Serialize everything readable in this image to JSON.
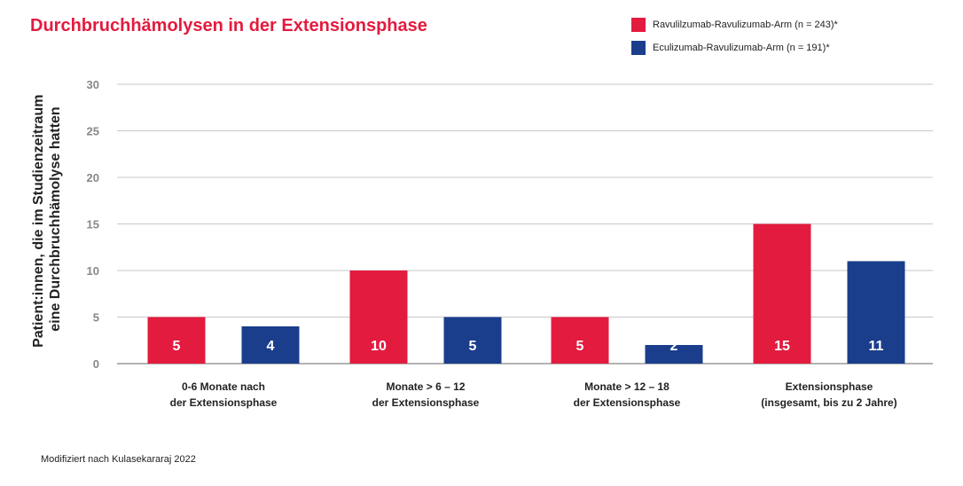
{
  "title": "Durchbruchhämolysen in der Extensionsphase",
  "source_note": "Modifiziert nach Kulasekararaj 2022",
  "legend": [
    {
      "label": "Ravulilzumab-Ravulizumab-Arm (n = 243)*",
      "color": "#e31b3f"
    },
    {
      "label": "Eculizumab-Ravulizumab-Arm (n = 191)*",
      "color": "#1a3e8c"
    }
  ],
  "chart_data": {
    "type": "bar",
    "title": "Durchbruchhämolysen in der Extensionsphase",
    "ylabel_lines": [
      "Patient:innen, die im Studienzeitraum",
      "eine Durchbruchhämolyse hatten"
    ],
    "xlabel": "",
    "ylim": [
      0,
      30
    ],
    "yticks": [
      0,
      5,
      10,
      15,
      20,
      25,
      30
    ],
    "grid": true,
    "legend_position": "top-right",
    "categories": [
      [
        "0-6 Monate nach",
        "der Extensionsphase"
      ],
      [
        "Monate > 6 – 12",
        "der Extensionsphase"
      ],
      [
        "Monate > 12 – 18",
        "der Extensionsphase"
      ],
      [
        "Extensionsphase",
        "(insgesamt, bis zu 2 Jahre)"
      ]
    ],
    "series": [
      {
        "name": "Ravulilzumab-Ravulizumab-Arm (n = 243)*",
        "color": "#e31b3f",
        "values": [
          5,
          10,
          5,
          15
        ]
      },
      {
        "name": "Eculizumab-Ravulizumab-Arm (n = 191)*",
        "color": "#1a3e8c",
        "values": [
          4,
          5,
          2,
          11
        ]
      }
    ]
  }
}
